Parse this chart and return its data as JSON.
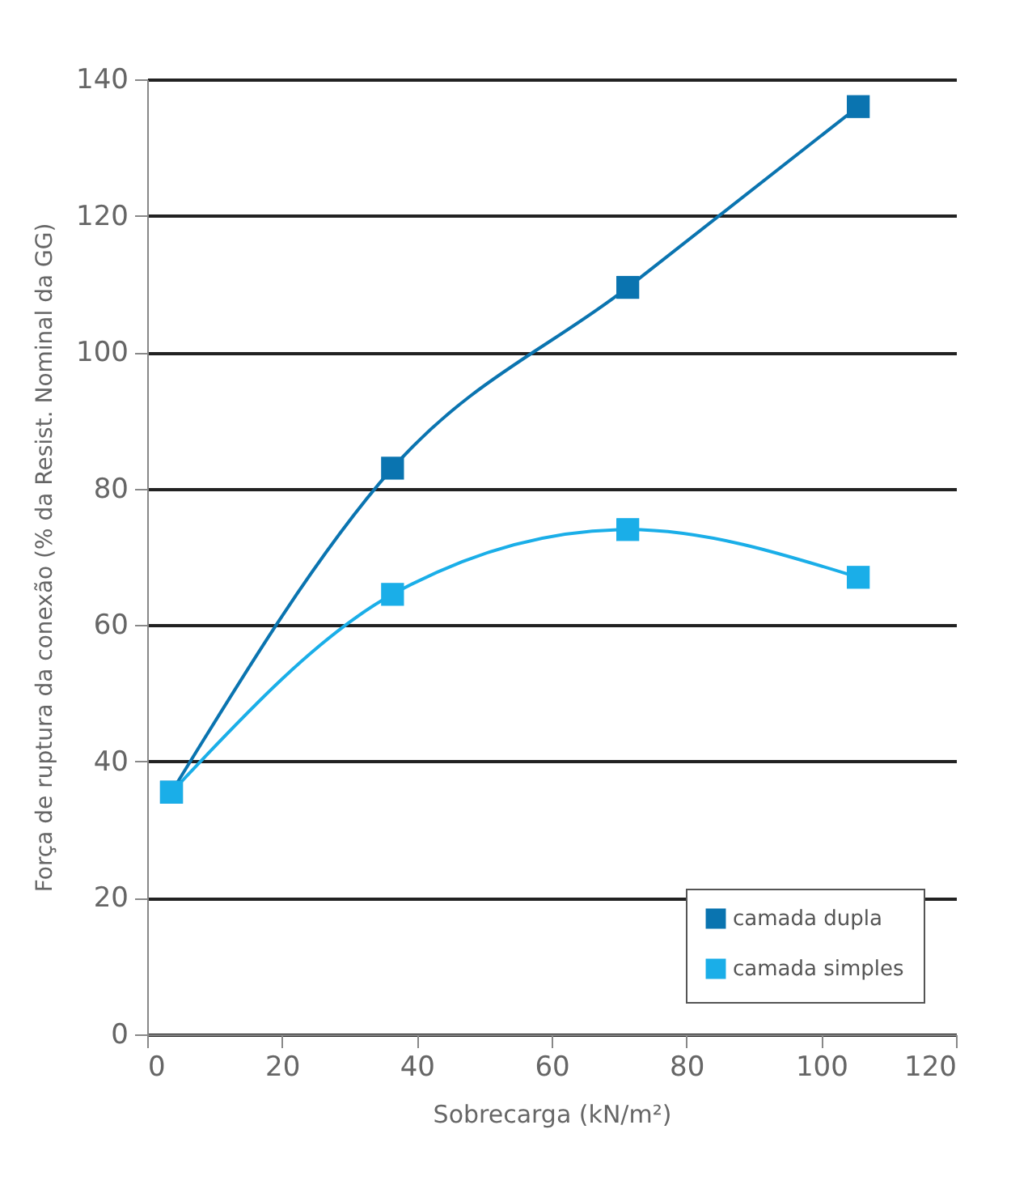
{
  "chart_data": {
    "type": "line",
    "xlabel": "Sobrecarga (kN/m²)",
    "ylabel": "Força de ruptura da conexão (% da Resist. Nominal da GG)",
    "x": [
      3.6,
      36.4,
      71.3,
      105.5
    ],
    "series": [
      {
        "name": "camada dupla",
        "color": "#0a74b0",
        "values": [
          35.5,
          83,
          109.5,
          136
        ]
      },
      {
        "name": "camada simples",
        "color": "#1aaee8",
        "values": [
          35.5,
          64.5,
          74,
          67
        ]
      }
    ],
    "xlim": [
      0,
      120
    ],
    "xticks": [
      0,
      20,
      40,
      60,
      80,
      100,
      120
    ],
    "ylim": [
      0,
      140
    ],
    "yticks": [
      0,
      20,
      40,
      60,
      80,
      100,
      120,
      140
    ],
    "grid": "y",
    "legend": "bottom right",
    "marker": "square",
    "line_style": "solid"
  }
}
